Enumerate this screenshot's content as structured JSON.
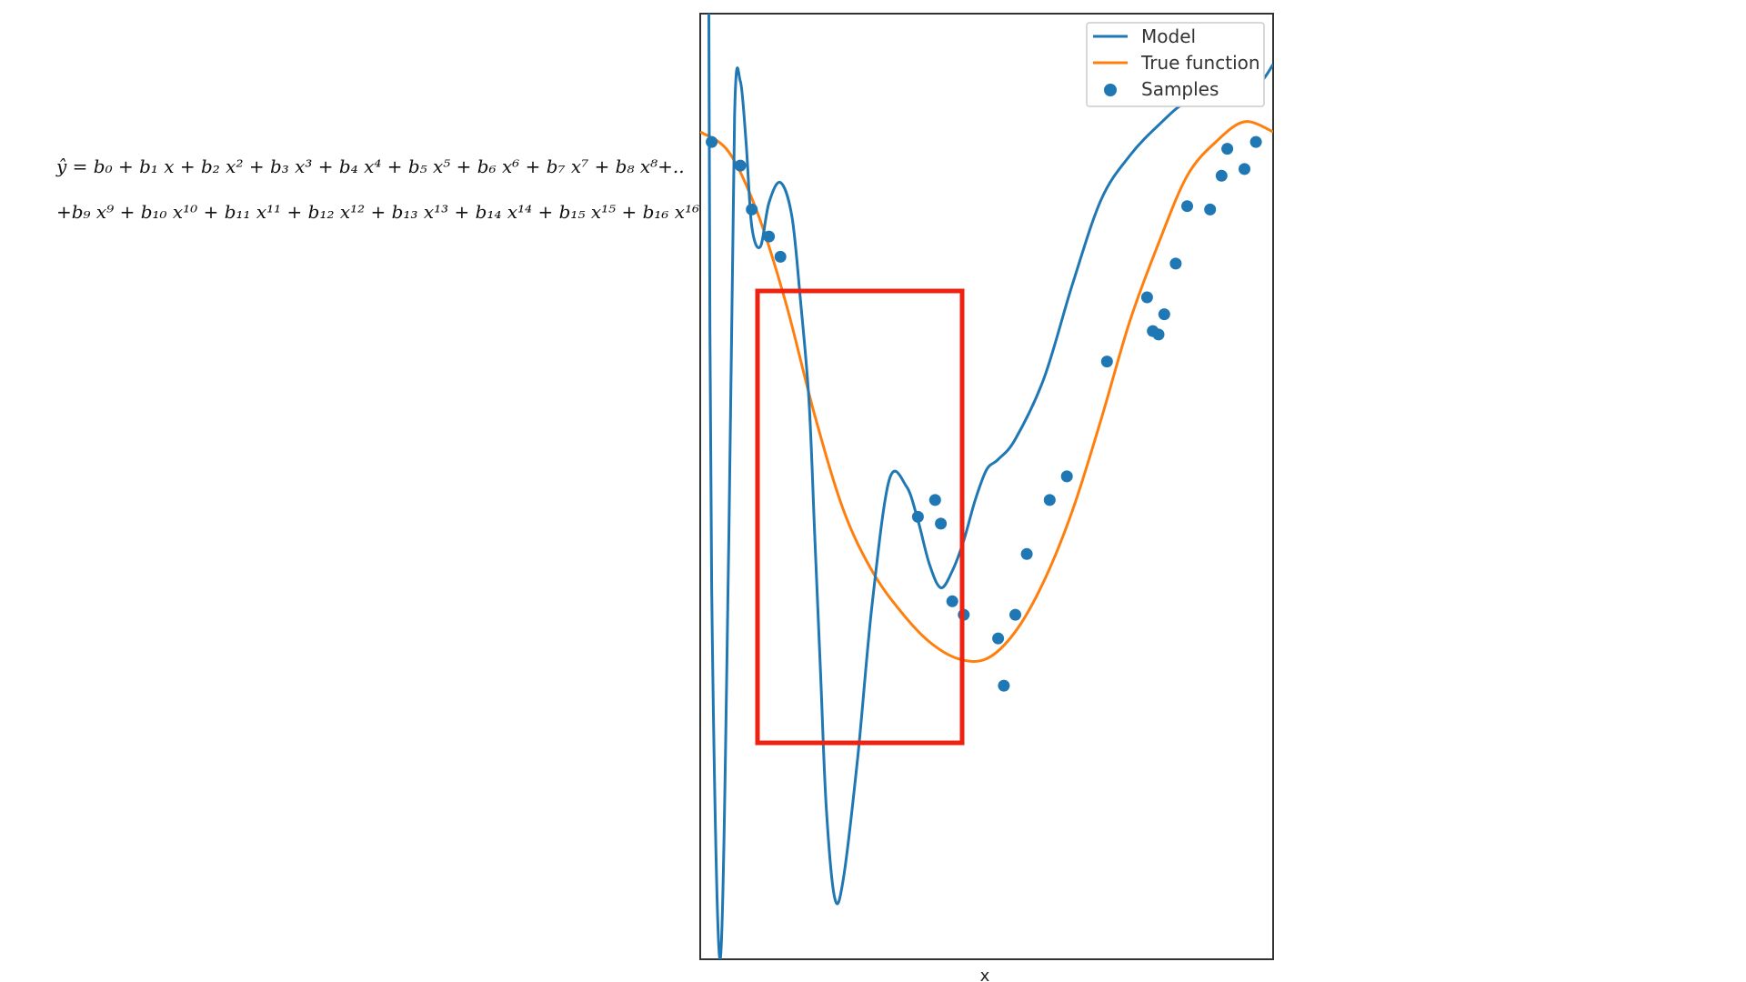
{
  "equation": {
    "line1": "ŷ = b₀ + b₁ x + b₂ x² + b₃ x³ + b₄ x⁴ + b₅ x⁵ + b₆ x⁶ + b₇ x⁷ + b₈ x⁸+..",
    "line2": "+b₉ x⁹ + b₁₀ x¹⁰ + b₁₁ x¹¹ + b₁₂ x¹² + b₁₃ x¹³ + b₁₄ x¹⁴ + b₁₅ x¹⁵ + b₁₆ x¹⁶"
  },
  "highlight": {
    "color": "#ee2211"
  },
  "chart_data": {
    "type": "line",
    "xlabel": "x",
    "ylabel": "",
    "xlim": [
      0,
      1
    ],
    "ylim": [
      -1.6,
      1.2
    ],
    "grid": false,
    "legend": {
      "position": "top-right",
      "entries": [
        "Model",
        "True function",
        "Samples"
      ]
    },
    "series": [
      {
        "name": "Model",
        "kind": "line",
        "color": "#1f77b4",
        "x": [
          0.015,
          0.02,
          0.035,
          0.05,
          0.06,
          0.07,
          0.08,
          0.09,
          0.105,
          0.12,
          0.14,
          0.16,
          0.175,
          0.19,
          0.2,
          0.21,
          0.22,
          0.235,
          0.25,
          0.275,
          0.3,
          0.33,
          0.36,
          0.38,
          0.4,
          0.42,
          0.44,
          0.46,
          0.48,
          0.5,
          0.52,
          0.55,
          0.6,
          0.65,
          0.7,
          0.75,
          0.8,
          0.85,
          0.9,
          0.95,
          0.98,
          1.0
        ],
        "y": [
          1.2,
          -0.5,
          -1.6,
          -0.35,
          0.9,
          1.0,
          0.82,
          0.57,
          0.51,
          0.64,
          0.7,
          0.6,
          0.35,
          0.05,
          -0.35,
          -0.75,
          -1.15,
          -1.42,
          -1.36,
          -1.0,
          -0.55,
          -0.18,
          -0.2,
          -0.3,
          -0.43,
          -0.5,
          -0.45,
          -0.36,
          -0.24,
          -0.15,
          -0.12,
          -0.06,
          0.12,
          0.4,
          0.65,
          0.78,
          0.87,
          0.94,
          0.95,
          0.96,
          1.0,
          1.05
        ]
      },
      {
        "name": "True function",
        "kind": "line",
        "color": "#ff7f0e",
        "x": [
          0,
          0.05,
          0.1,
          0.15,
          0.2,
          0.25,
          0.3,
          0.35,
          0.4,
          0.45,
          0.5,
          0.55,
          0.6,
          0.65,
          0.7,
          0.75,
          0.8,
          0.85,
          0.9,
          0.95,
          1.0
        ],
        "y": [
          0.85,
          0.79,
          0.61,
          0.34,
          0.01,
          -0.27,
          -0.45,
          -0.57,
          -0.66,
          -0.71,
          -0.71,
          -0.63,
          -0.48,
          -0.27,
          0.0,
          0.29,
          0.52,
          0.72,
          0.82,
          0.88,
          0.85
        ]
      },
      {
        "name": "Samples",
        "kind": "scatter",
        "color": "#1f77b4",
        "x": [
          0.02,
          0.07,
          0.09,
          0.12,
          0.14,
          0.38,
          0.41,
          0.42,
          0.44,
          0.46,
          0.52,
          0.53,
          0.55,
          0.57,
          0.61,
          0.64,
          0.71,
          0.78,
          0.79,
          0.8,
          0.81,
          0.83,
          0.85,
          0.89,
          0.91,
          0.92,
          0.95,
          0.97
        ],
        "y": [
          0.82,
          0.75,
          0.62,
          0.54,
          0.48,
          -0.29,
          -0.24,
          -0.31,
          -0.54,
          -0.58,
          -0.65,
          -0.79,
          -0.58,
          -0.4,
          -0.24,
          -0.17,
          0.17,
          0.36,
          0.26,
          0.25,
          0.31,
          0.46,
          0.63,
          0.62,
          0.72,
          0.8,
          0.74,
          0.82
        ]
      }
    ]
  }
}
